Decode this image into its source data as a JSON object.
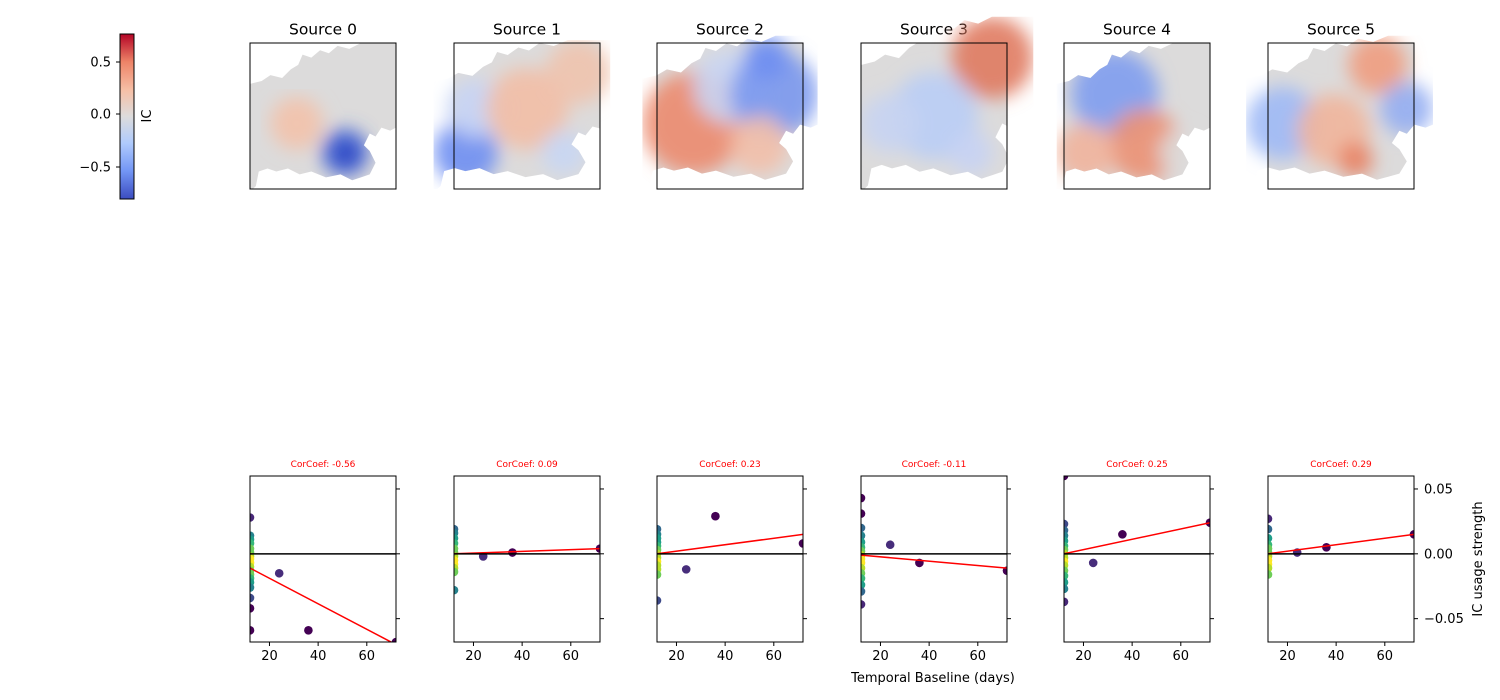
{
  "colorbar": {
    "label": "IC",
    "ticks": [
      "0.5",
      "0.0",
      "−0.5"
    ],
    "range": [
      -0.82,
      0.82
    ],
    "cmap": [
      "#3b4cc0",
      "#7396f5",
      "#b0cbfc",
      "#dddcdc",
      "#f6bfa6",
      "#ee8468",
      "#b40426"
    ]
  },
  "maps": [
    {
      "title": "Source 0"
    },
    {
      "title": "Source 1"
    },
    {
      "title": "Source 2"
    },
    {
      "title": "Source 3"
    },
    {
      "title": "Source 4"
    },
    {
      "title": "Source 5"
    }
  ],
  "chart_data": {
    "type": "scatter",
    "xlabel": "Temporal Baseline (days)",
    "ylabel": "IC usage strength",
    "xlim": [
      12,
      72
    ],
    "ylim": [
      -0.068,
      0.06
    ],
    "xticks": [
      "20",
      "40",
      "60"
    ],
    "yticks": [
      "0.05",
      "0.00",
      "−0.05"
    ],
    "line_color": "#ff0000",
    "zero_line_color": "#000000",
    "title_color": "#ff0000",
    "panels": [
      {
        "title": "CorCoef: -0.56",
        "points": [
          [
            12,
            0.028
          ],
          [
            12,
            0.014
          ],
          [
            12,
            0.011
          ],
          [
            12,
            0.008
          ],
          [
            12,
            0.004
          ],
          [
            12,
            0.001
          ],
          [
            12,
            -0.002
          ],
          [
            12,
            -0.004
          ],
          [
            12,
            -0.007
          ],
          [
            12,
            -0.01
          ],
          [
            12,
            -0.013
          ],
          [
            12,
            -0.016
          ],
          [
            12,
            -0.019
          ],
          [
            12,
            -0.022
          ],
          [
            12,
            -0.026
          ],
          [
            12,
            -0.034
          ],
          [
            12,
            -0.042
          ],
          [
            12,
            -0.059
          ],
          [
            24,
            -0.015
          ],
          [
            36,
            -0.059
          ],
          [
            72,
            -0.068
          ]
        ],
        "fit": [
          [
            12,
            -0.011
          ],
          [
            72,
            -0.07
          ]
        ]
      },
      {
        "title": "CorCoef: 0.09",
        "points": [
          [
            12,
            0.019
          ],
          [
            12,
            0.016
          ],
          [
            12,
            0.012
          ],
          [
            12,
            0.008
          ],
          [
            12,
            0.004
          ],
          [
            12,
            0.001
          ],
          [
            12,
            -0.002
          ],
          [
            12,
            -0.005
          ],
          [
            12,
            -0.008
          ],
          [
            12,
            -0.011
          ],
          [
            12,
            -0.014
          ],
          [
            12,
            -0.028
          ],
          [
            24,
            -0.002
          ],
          [
            36,
            0.001
          ],
          [
            72,
            0.004
          ]
        ],
        "fit": [
          [
            12,
            0.0
          ],
          [
            72,
            0.004
          ]
        ]
      },
      {
        "title": "CorCoef: 0.23",
        "points": [
          [
            12,
            0.019
          ],
          [
            12,
            0.015
          ],
          [
            12,
            0.012
          ],
          [
            12,
            0.009
          ],
          [
            12,
            0.006
          ],
          [
            12,
            0.003
          ],
          [
            12,
            0.0
          ],
          [
            12,
            -0.003
          ],
          [
            12,
            -0.006
          ],
          [
            12,
            -0.009
          ],
          [
            12,
            -0.012
          ],
          [
            12,
            -0.016
          ],
          [
            12,
            -0.036
          ],
          [
            24,
            -0.012
          ],
          [
            36,
            0.029
          ],
          [
            72,
            0.008
          ]
        ],
        "fit": [
          [
            12,
            0.0
          ],
          [
            72,
            0.015
          ]
        ]
      },
      {
        "title": "CorCoef: -0.11",
        "points": [
          [
            12,
            0.043
          ],
          [
            12,
            0.031
          ],
          [
            12,
            0.02
          ],
          [
            12,
            0.014
          ],
          [
            12,
            0.009
          ],
          [
            12,
            0.005
          ],
          [
            12,
            0.002
          ],
          [
            12,
            -0.001
          ],
          [
            12,
            -0.004
          ],
          [
            12,
            -0.007
          ],
          [
            12,
            -0.011
          ],
          [
            12,
            -0.015
          ],
          [
            12,
            -0.019
          ],
          [
            12,
            -0.024
          ],
          [
            12,
            -0.029
          ],
          [
            12,
            -0.039
          ],
          [
            24,
            0.007
          ],
          [
            36,
            -0.007
          ],
          [
            72,
            -0.013
          ]
        ],
        "fit": [
          [
            12,
            -0.001
          ],
          [
            72,
            -0.011
          ]
        ]
      },
      {
        "title": "CorCoef: 0.25",
        "points": [
          [
            12,
            0.06
          ],
          [
            12,
            0.023
          ],
          [
            12,
            0.018
          ],
          [
            12,
            0.014
          ],
          [
            12,
            0.01
          ],
          [
            12,
            0.006
          ],
          [
            12,
            0.003
          ],
          [
            12,
            0.0
          ],
          [
            12,
            -0.003
          ],
          [
            12,
            -0.006
          ],
          [
            12,
            -0.009
          ],
          [
            12,
            -0.013
          ],
          [
            12,
            -0.017
          ],
          [
            12,
            -0.022
          ],
          [
            12,
            -0.027
          ],
          [
            12,
            -0.037
          ],
          [
            24,
            -0.007
          ],
          [
            36,
            0.015
          ],
          [
            72,
            0.024
          ]
        ],
        "fit": [
          [
            12,
            0.0
          ],
          [
            72,
            0.024
          ]
        ]
      },
      {
        "title": "CorCoef: 0.29",
        "points": [
          [
            12,
            0.027
          ],
          [
            12,
            0.019
          ],
          [
            12,
            0.012
          ],
          [
            12,
            0.007
          ],
          [
            12,
            0.004
          ],
          [
            12,
            0.001
          ],
          [
            12,
            -0.002
          ],
          [
            12,
            -0.005
          ],
          [
            12,
            -0.008
          ],
          [
            12,
            -0.011
          ],
          [
            12,
            -0.016
          ],
          [
            24,
            0.001
          ],
          [
            36,
            0.005
          ],
          [
            72,
            0.015
          ]
        ],
        "fit": [
          [
            12,
            0.0
          ],
          [
            72,
            0.015
          ]
        ]
      }
    ]
  }
}
